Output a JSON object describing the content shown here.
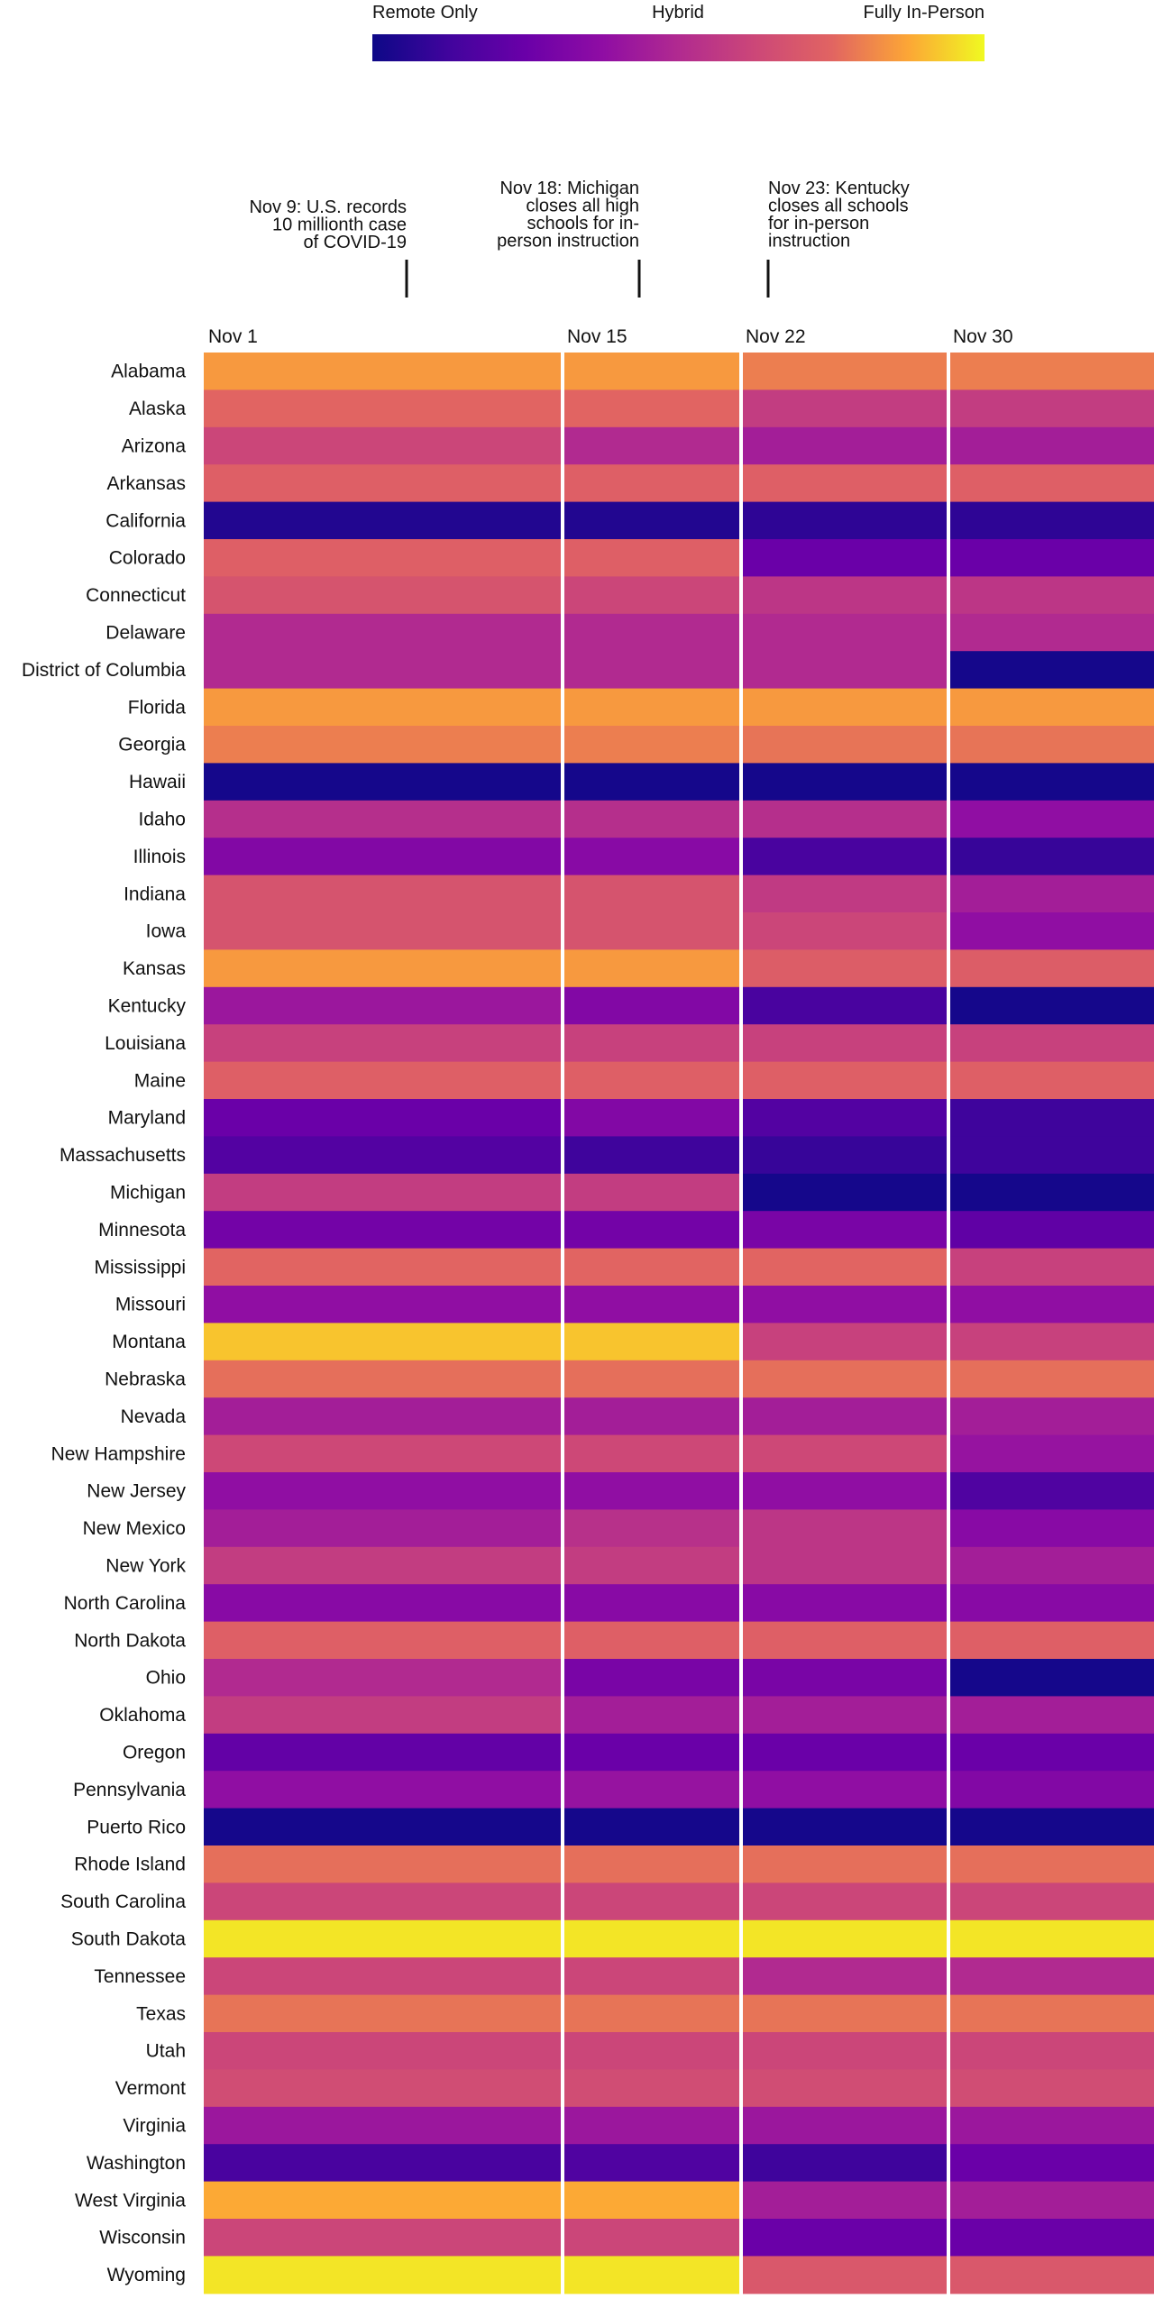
{
  "chart_data": {
    "type": "heatmap",
    "title": "",
    "xlabel": "",
    "ylabel": "",
    "legend": {
      "labels": [
        "Remote Only",
        "Hybrid",
        "Fully In-Person"
      ],
      "scale": "plasma",
      "range": [
        0,
        1
      ],
      "placement": "top"
    },
    "columns": [
      {
        "label": "Nov 1"
      },
      {
        "label": "Nov 15"
      },
      {
        "label": "Nov 22"
      },
      {
        "label": "Nov 30"
      }
    ],
    "annotations": [
      {
        "date": "Nov 9",
        "text": [
          "Nov 9: U.S. records",
          "10 millionth case",
          "of COVID-19"
        ],
        "align": "right"
      },
      {
        "date": "Nov 18",
        "text": [
          "Nov 18: Michigan",
          "closes all high",
          "schools for in-",
          "person instruction"
        ],
        "align": "right"
      },
      {
        "date": "Nov 23",
        "text": [
          "Nov 23: Kentucky",
          "closes all schools",
          "for in-person",
          "instruction"
        ],
        "align": "left"
      }
    ],
    "rows": [
      {
        "state": "Alabama",
        "values": [
          0.85,
          0.85,
          0.8,
          0.8
        ]
      },
      {
        "state": "Alaska",
        "values": [
          0.75,
          0.75,
          0.58,
          0.58
        ]
      },
      {
        "state": "Arizona",
        "values": [
          0.62,
          0.5,
          0.45,
          0.45
        ]
      },
      {
        "state": "Arkansas",
        "values": [
          0.73,
          0.73,
          0.73,
          0.73
        ]
      },
      {
        "state": "California",
        "values": [
          0.05,
          0.05,
          0.08,
          0.08
        ]
      },
      {
        "state": "Colorado",
        "values": [
          0.73,
          0.73,
          0.25,
          0.25
        ]
      },
      {
        "state": "Connecticut",
        "values": [
          0.68,
          0.62,
          0.55,
          0.55
        ]
      },
      {
        "state": "Delaware",
        "values": [
          0.5,
          0.5,
          0.5,
          0.5
        ]
      },
      {
        "state": "District of Columbia",
        "values": [
          0.5,
          0.5,
          0.5,
          0.02
        ]
      },
      {
        "state": "Florida",
        "values": [
          0.85,
          0.85,
          0.85,
          0.85
        ]
      },
      {
        "state": "Georgia",
        "values": [
          0.8,
          0.8,
          0.78,
          0.78
        ]
      },
      {
        "state": "Hawaii",
        "values": [
          0.02,
          0.02,
          0.02,
          0.02
        ]
      },
      {
        "state": "Idaho",
        "values": [
          0.52,
          0.52,
          0.52,
          0.38
        ]
      },
      {
        "state": "Illinois",
        "values": [
          0.33,
          0.35,
          0.15,
          0.1
        ]
      },
      {
        "state": "Indiana",
        "values": [
          0.68,
          0.68,
          0.57,
          0.45
        ]
      },
      {
        "state": "Iowa",
        "values": [
          0.68,
          0.68,
          0.62,
          0.38
        ]
      },
      {
        "state": "Kansas",
        "values": [
          0.85,
          0.85,
          0.72,
          0.72
        ]
      },
      {
        "state": "Kentucky",
        "values": [
          0.42,
          0.33,
          0.15,
          0.02
        ]
      },
      {
        "state": "Louisiana",
        "values": [
          0.6,
          0.6,
          0.6,
          0.6
        ]
      },
      {
        "state": "Maine",
        "values": [
          0.73,
          0.73,
          0.73,
          0.73
        ]
      },
      {
        "state": "Maryland",
        "values": [
          0.25,
          0.33,
          0.18,
          0.12
        ]
      },
      {
        "state": "Massachusetts",
        "values": [
          0.18,
          0.12,
          0.1,
          0.12
        ]
      },
      {
        "state": "Michigan",
        "values": [
          0.58,
          0.58,
          0.02,
          0.02
        ]
      },
      {
        "state": "Minnesota",
        "values": [
          0.28,
          0.28,
          0.3,
          0.22
        ]
      },
      {
        "state": "Mississippi",
        "values": [
          0.75,
          0.75,
          0.75,
          0.6
        ]
      },
      {
        "state": "Missouri",
        "values": [
          0.38,
          0.38,
          0.38,
          0.38
        ]
      },
      {
        "state": "Montana",
        "values": [
          0.92,
          0.92,
          0.6,
          0.6
        ]
      },
      {
        "state": "Nebraska",
        "values": [
          0.77,
          0.77,
          0.77,
          0.77
        ]
      },
      {
        "state": "Nevada",
        "values": [
          0.45,
          0.45,
          0.45,
          0.45
        ]
      },
      {
        "state": "New Hampshire",
        "values": [
          0.63,
          0.63,
          0.63,
          0.4
        ]
      },
      {
        "state": "New Jersey",
        "values": [
          0.38,
          0.38,
          0.38,
          0.17
        ]
      },
      {
        "state": "New Mexico",
        "values": [
          0.45,
          0.53,
          0.55,
          0.35
        ]
      },
      {
        "state": "New York",
        "values": [
          0.58,
          0.58,
          0.55,
          0.45
        ]
      },
      {
        "state": "North Carolina",
        "values": [
          0.35,
          0.35,
          0.35,
          0.35
        ]
      },
      {
        "state": "North Dakota",
        "values": [
          0.73,
          0.73,
          0.73,
          0.73
        ]
      },
      {
        "state": "Ohio",
        "values": [
          0.5,
          0.3,
          0.3,
          0.02
        ]
      },
      {
        "state": "Oklahoma",
        "values": [
          0.58,
          0.45,
          0.45,
          0.45
        ]
      },
      {
        "state": "Oregon",
        "values": [
          0.23,
          0.25,
          0.25,
          0.25
        ]
      },
      {
        "state": "Pennsylvania",
        "values": [
          0.38,
          0.4,
          0.38,
          0.33
        ]
      },
      {
        "state": "Puerto Rico",
        "values": [
          0.02,
          0.02,
          0.02,
          0.02
        ]
      },
      {
        "state": "Rhode Island",
        "values": [
          0.77,
          0.77,
          0.77,
          0.77
        ]
      },
      {
        "state": "South Carolina",
        "values": [
          0.62,
          0.62,
          0.62,
          0.62
        ]
      },
      {
        "state": "South Dakota",
        "values": [
          0.97,
          0.97,
          0.97,
          0.97
        ]
      },
      {
        "state": "Tennessee",
        "values": [
          0.62,
          0.62,
          0.5,
          0.5
        ]
      },
      {
        "state": "Texas",
        "values": [
          0.78,
          0.78,
          0.78,
          0.78
        ]
      },
      {
        "state": "Utah",
        "values": [
          0.62,
          0.62,
          0.62,
          0.62
        ]
      },
      {
        "state": "Vermont",
        "values": [
          0.65,
          0.65,
          0.65,
          0.65
        ]
      },
      {
        "state": "Virginia",
        "values": [
          0.42,
          0.42,
          0.42,
          0.42
        ]
      },
      {
        "state": "Washington",
        "values": [
          0.15,
          0.17,
          0.12,
          0.25
        ]
      },
      {
        "state": "West Virginia",
        "values": [
          0.88,
          0.88,
          0.45,
          0.45
        ]
      },
      {
        "state": "Wisconsin",
        "values": [
          0.62,
          0.62,
          0.25,
          0.25
        ]
      },
      {
        "state": "Wyoming",
        "values": [
          0.97,
          0.97,
          0.7,
          0.7
        ]
      }
    ]
  }
}
